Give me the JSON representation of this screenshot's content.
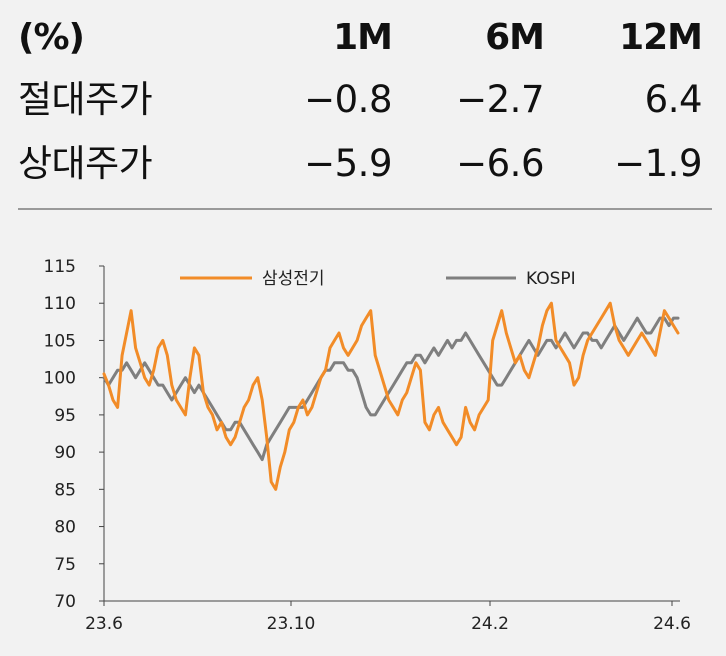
{
  "table": {
    "header": {
      "unit": "(%)",
      "cols": [
        "1M",
        "6M",
        "12M"
      ]
    },
    "rows": [
      {
        "label": "절대주가",
        "values": [
          "−0.8",
          "−2.7",
          "6.4"
        ]
      },
      {
        "label": "상대주가",
        "values": [
          "−5.9",
          "−6.6",
          "−1.9"
        ]
      }
    ]
  },
  "chart_data": {
    "type": "line",
    "title": "",
    "xlabel": "",
    "ylabel": "",
    "ylim": [
      70,
      115
    ],
    "yticks": [
      "115",
      "110",
      "105",
      "100",
      "95",
      "90",
      "85",
      "80",
      "75",
      "70"
    ],
    "xticks": [
      "23.6",
      "23.10",
      "24.2",
      "24.6"
    ],
    "legend_position": "top",
    "series": [
      {
        "name": "삼성전기",
        "color": "#f28c28",
        "values": [
          100.5,
          99,
          97,
          96,
          103,
          106,
          109,
          104,
          102,
          100,
          99,
          101,
          104,
          105,
          103,
          99,
          97,
          96,
          95,
          100,
          104,
          103,
          98,
          96,
          95,
          93,
          94,
          92,
          91,
          92,
          94,
          96,
          97,
          99,
          100,
          97,
          92,
          86,
          85,
          88,
          90,
          93,
          94,
          96,
          97,
          95,
          96,
          98,
          100,
          101,
          104,
          105,
          106,
          104,
          103,
          104,
          105,
          107,
          108,
          109,
          103,
          101,
          99,
          97,
          96,
          95,
          97,
          98,
          100,
          102,
          101,
          94,
          93,
          95,
          96,
          94,
          93,
          92,
          91,
          92,
          96,
          94,
          93,
          95,
          96,
          97,
          105,
          107,
          109,
          106,
          104,
          102,
          103,
          101,
          100,
          102,
          104,
          107,
          109,
          110,
          105,
          104,
          103,
          102,
          99,
          100,
          103,
          105,
          106,
          107,
          108,
          109,
          110,
          107,
          105,
          104,
          103,
          104,
          105,
          106,
          105,
          104,
          103,
          106,
          109,
          108,
          107,
          106
        ]
      },
      {
        "name": "KOSPI",
        "color": "#7f7f7f",
        "values": [
          100,
          99,
          100,
          101,
          101,
          102,
          101,
          100,
          101,
          102,
          101,
          100,
          99,
          99,
          98,
          97,
          98,
          99,
          100,
          99,
          98,
          99,
          98,
          97,
          96,
          95,
          94,
          93,
          93,
          94,
          94,
          93,
          92,
          91,
          90,
          89,
          91,
          92,
          93,
          94,
          95,
          96,
          96,
          96,
          96,
          97,
          98,
          99,
          100,
          101,
          101,
          102,
          102,
          102,
          101,
          101,
          100,
          98,
          96,
          95,
          95,
          96,
          97,
          98,
          99,
          100,
          101,
          102,
          102,
          103,
          103,
          102,
          103,
          104,
          103,
          104,
          105,
          104,
          105,
          105,
          106,
          105,
          104,
          103,
          102,
          101,
          100,
          99,
          99,
          100,
          101,
          102,
          103,
          104,
          105,
          104,
          103,
          104,
          105,
          105,
          104,
          105,
          106,
          105,
          104,
          105,
          106,
          106,
          105,
          105,
          104,
          105,
          106,
          107,
          106,
          105,
          106,
          107,
          108,
          107,
          106,
          106,
          107,
          108,
          108,
          107,
          108,
          108
        ]
      }
    ]
  }
}
